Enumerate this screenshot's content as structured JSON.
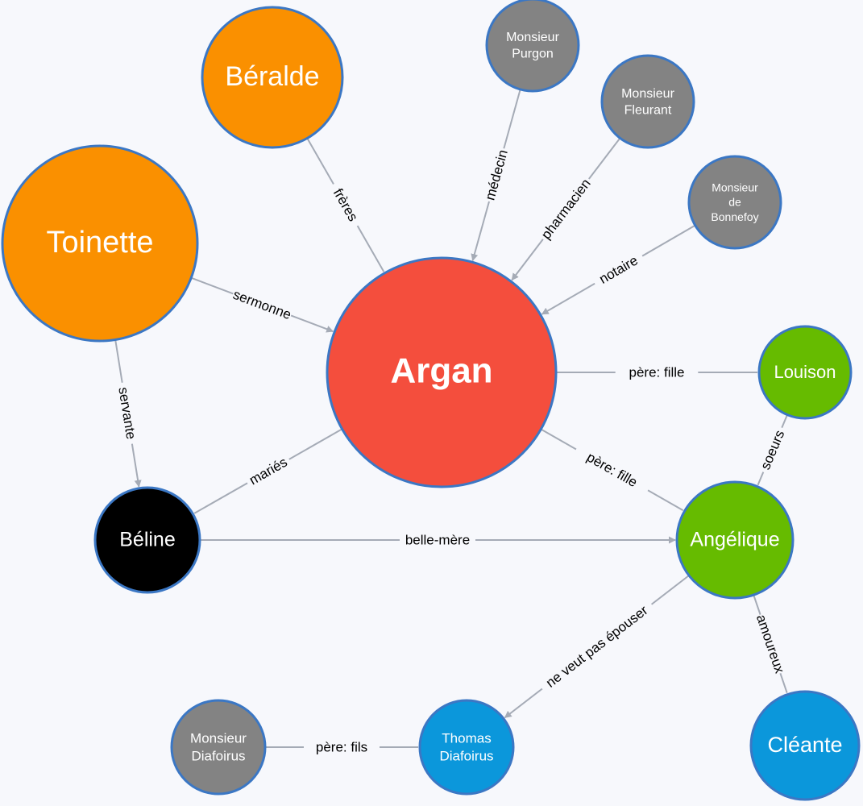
{
  "colors": {
    "main": "#f44e3d",
    "orange": "#fa9000",
    "gray": "#838383",
    "black": "#000000",
    "green": "#66bb00",
    "blue": "#0b97db",
    "edge": "#a5abb6",
    "border": "#3b77c4"
  },
  "nodes": [
    {
      "id": "argan",
      "lines": [
        "Argan"
      ],
      "color": "main"
    },
    {
      "id": "beralde",
      "lines": [
        "Béralde"
      ],
      "color": "orange"
    },
    {
      "id": "toinette",
      "lines": [
        "Toinette"
      ],
      "color": "orange"
    },
    {
      "id": "purgon",
      "lines": [
        "Monsieur",
        "Purgon"
      ],
      "color": "gray"
    },
    {
      "id": "fleurant",
      "lines": [
        "Monsieur",
        "Fleurant"
      ],
      "color": "gray"
    },
    {
      "id": "bonnefoy",
      "lines": [
        "Monsieur",
        "de",
        "Bonnefoy"
      ],
      "color": "gray"
    },
    {
      "id": "louison",
      "lines": [
        "Louison"
      ],
      "color": "green"
    },
    {
      "id": "beline",
      "lines": [
        "Béline"
      ],
      "color": "black"
    },
    {
      "id": "angelique",
      "lines": [
        "Angélique"
      ],
      "color": "green"
    },
    {
      "id": "cleante",
      "lines": [
        "Cléante"
      ],
      "color": "blue"
    },
    {
      "id": "thomas",
      "lines": [
        "Thomas",
        "Diafoirus"
      ],
      "color": "blue"
    },
    {
      "id": "mdiafoirus",
      "lines": [
        "Monsieur",
        "Diafoirus"
      ],
      "color": "gray"
    }
  ],
  "edges": [
    {
      "from": "beralde",
      "to": "argan",
      "label": "frères",
      "arrow": false
    },
    {
      "from": "purgon",
      "to": "argan",
      "label": "médecin",
      "arrow": true
    },
    {
      "from": "fleurant",
      "to": "argan",
      "label": "pharmacien",
      "arrow": true
    },
    {
      "from": "bonnefoy",
      "to": "argan",
      "label": "notaire",
      "arrow": true
    },
    {
      "from": "toinette",
      "to": "argan",
      "label": "sermonne",
      "arrow": true
    },
    {
      "from": "argan",
      "to": "louison",
      "label": "père: fille",
      "arrow": false
    },
    {
      "from": "toinette",
      "to": "beline",
      "label": "servante",
      "arrow": true
    },
    {
      "from": "argan",
      "to": "beline",
      "label": "mariés",
      "arrow": false
    },
    {
      "from": "argan",
      "to": "angelique",
      "label": "père: fille",
      "arrow": false
    },
    {
      "from": "louison",
      "to": "angelique",
      "label": "soeurs",
      "arrow": false
    },
    {
      "from": "beline",
      "to": "angelique",
      "label": "belle-mère",
      "arrow": true
    },
    {
      "from": "angelique",
      "to": "thomas",
      "label": "ne veut pas épouser",
      "arrow": true
    },
    {
      "from": "angelique",
      "to": "cleante",
      "label": "amoureux",
      "arrow": false
    },
    {
      "from": "mdiafoirus",
      "to": "thomas",
      "label": "père: fils",
      "arrow": false
    }
  ]
}
